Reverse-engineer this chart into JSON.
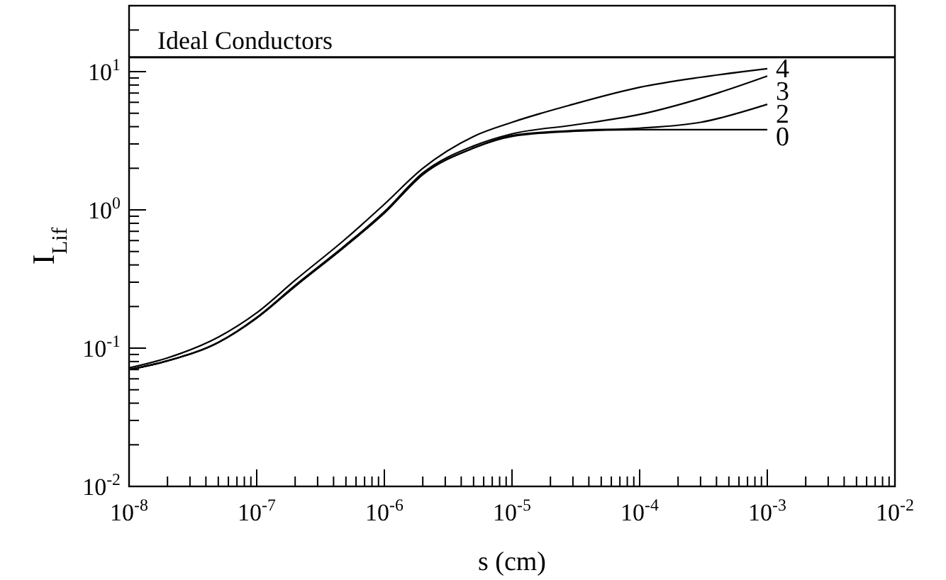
{
  "chart_data": {
    "type": "line",
    "xlabel": "s (cm)",
    "ylabel": "I$_{Lif}$",
    "log": "xy",
    "xlim": [
      1e-08,
      0.01
    ],
    "ylim": [
      0.01,
      30
    ],
    "xticks": [
      {
        "value": 1e-08,
        "label": "10$^{-8}$"
      },
      {
        "value": 2e-08,
        "label": null
      },
      {
        "value": 3e-08,
        "label": null
      },
      {
        "value": 4e-08,
        "label": null
      },
      {
        "value": 5e-08,
        "label": null
      },
      {
        "value": 6e-08,
        "label": null
      },
      {
        "value": 7e-08,
        "label": null
      },
      {
        "value": 8e-08,
        "label": null
      },
      {
        "value": 9e-08,
        "label": null
      },
      {
        "value": 1e-07,
        "label": "10$^{-7}$"
      },
      {
        "value": 2e-07,
        "label": null
      },
      {
        "value": 3e-07,
        "label": null
      },
      {
        "value": 4e-07,
        "label": null
      },
      {
        "value": 5e-07,
        "label": null
      },
      {
        "value": 6e-07,
        "label": null
      },
      {
        "value": 7e-07,
        "label": null
      },
      {
        "value": 8e-07,
        "label": null
      },
      {
        "value": 9e-07,
        "label": null
      },
      {
        "value": 1e-06,
        "label": "10$^{-6}$"
      },
      {
        "value": 2e-06,
        "label": null
      },
      {
        "value": 3e-06,
        "label": null
      },
      {
        "value": 4e-06,
        "label": null
      },
      {
        "value": 5e-06,
        "label": null
      },
      {
        "value": 6e-06,
        "label": null
      },
      {
        "value": 7e-06,
        "label": null
      },
      {
        "value": 8e-06,
        "label": null
      },
      {
        "value": 9e-06,
        "label": null
      },
      {
        "value": 1e-05,
        "label": "10$^{-5}$"
      },
      {
        "value": 2e-05,
        "label": null
      },
      {
        "value": 3e-05,
        "label": null
      },
      {
        "value": 4e-05,
        "label": null
      },
      {
        "value": 5e-05,
        "label": null
      },
      {
        "value": 6e-05,
        "label": null
      },
      {
        "value": 7e-05,
        "label": null
      },
      {
        "value": 8e-05,
        "label": null
      },
      {
        "value": 9e-05,
        "label": null
      },
      {
        "value": 0.0001,
        "label": "10$^{-4}$"
      },
      {
        "value": 0.0002,
        "label": null
      },
      {
        "value": 0.0003,
        "label": null
      },
      {
        "value": 0.0004,
        "label": null
      },
      {
        "value": 0.0005,
        "label": null
      },
      {
        "value": 0.0006,
        "label": null
      },
      {
        "value": 0.0007,
        "label": null
      },
      {
        "value": 0.0008,
        "label": null
      },
      {
        "value": 0.0009,
        "label": null
      },
      {
        "value": 0.001,
        "label": "10$^{-3}$"
      },
      {
        "value": 0.002,
        "label": null
      },
      {
        "value": 0.003,
        "label": null
      },
      {
        "value": 0.004,
        "label": null
      },
      {
        "value": 0.005,
        "label": null
      },
      {
        "value": 0.006,
        "label": null
      },
      {
        "value": 0.007,
        "label": null
      },
      {
        "value": 0.008,
        "label": null
      },
      {
        "value": 0.009,
        "label": null
      },
      {
        "value": 0.01,
        "label": "10$^{-2}$"
      }
    ],
    "yticks": [
      {
        "value": 0.01,
        "label": "10$^{-2}$"
      },
      {
        "value": 0.02,
        "label": null
      },
      {
        "value": 0.03,
        "label": null
      },
      {
        "value": 0.04,
        "label": null
      },
      {
        "value": 0.05,
        "label": null
      },
      {
        "value": 0.06,
        "label": null
      },
      {
        "value": 0.07,
        "label": null
      },
      {
        "value": 0.08,
        "label": null
      },
      {
        "value": 0.09,
        "label": null
      },
      {
        "value": 0.1,
        "label": "10$^{-1}$"
      },
      {
        "value": 0.2,
        "label": null
      },
      {
        "value": 0.3,
        "label": null
      },
      {
        "value": 0.4,
        "label": null
      },
      {
        "value": 0.5,
        "label": null
      },
      {
        "value": 0.6,
        "label": null
      },
      {
        "value": 0.7,
        "label": null
      },
      {
        "value": 0.8,
        "label": null
      },
      {
        "value": 0.9,
        "label": null
      },
      {
        "value": 1,
        "label": "10$^{0}$"
      },
      {
        "value": 2,
        "label": null
      },
      {
        "value": 3,
        "label": null
      },
      {
        "value": 4,
        "label": null
      },
      {
        "value": 5,
        "label": null
      },
      {
        "value": 6,
        "label": null
      },
      {
        "value": 7,
        "label": null
      },
      {
        "value": 8,
        "label": null
      },
      {
        "value": 9,
        "label": null
      },
      {
        "value": 10,
        "label": "10$^{1}$"
      },
      {
        "value": 20,
        "label": null
      },
      {
        "value": 30,
        "label": null
      }
    ],
    "grid": false,
    "marker": "none",
    "line_style": "solid",
    "ref_lines": [
      {
        "axis": "y",
        "value": 12.7,
        "label": "Ideal Conductors",
        "color": "#000000"
      }
    ],
    "series": [
      {
        "name": "0",
        "color": "#000000",
        "x": [
          1e-08,
          2e-08,
          5e-08,
          1e-07,
          2e-07,
          5e-07,
          1e-06,
          2e-06,
          5e-06,
          1e-05,
          3e-05,
          0.0001,
          0.0003,
          0.001
        ],
        "values": [
          0.07,
          0.081,
          0.11,
          0.165,
          0.28,
          0.55,
          0.95,
          1.8,
          2.8,
          3.4,
          3.7,
          3.8,
          3.8,
          3.8
        ]
      },
      {
        "name": "2",
        "color": "#000000",
        "x": [
          1e-08,
          2e-08,
          5e-08,
          1e-07,
          2e-07,
          5e-07,
          1e-06,
          2e-06,
          5e-06,
          1e-05,
          3e-05,
          0.0001,
          0.0003,
          0.001
        ],
        "values": [
          0.07,
          0.081,
          0.11,
          0.165,
          0.28,
          0.55,
          0.95,
          1.8,
          2.8,
          3.45,
          3.75,
          3.9,
          4.3,
          5.8
        ]
      },
      {
        "name": "3",
        "color": "#000000",
        "x": [
          1e-08,
          2e-08,
          5e-08,
          1e-07,
          2e-07,
          5e-07,
          1e-06,
          2e-06,
          5e-06,
          1e-05,
          3e-05,
          0.0001,
          0.0003,
          0.001
        ],
        "values": [
          0.07,
          0.081,
          0.11,
          0.167,
          0.285,
          0.56,
          0.97,
          1.85,
          2.9,
          3.55,
          4.1,
          4.9,
          6.4,
          9.3
        ]
      },
      {
        "name": "4",
        "color": "#000000",
        "x": [
          1e-08,
          2e-08,
          5e-08,
          1e-07,
          2e-07,
          5e-07,
          1e-06,
          2e-06,
          5e-06,
          1e-05,
          3e-05,
          0.0001,
          0.0003,
          0.001
        ],
        "values": [
          0.072,
          0.085,
          0.12,
          0.18,
          0.31,
          0.62,
          1.1,
          2.0,
          3.4,
          4.3,
          5.8,
          7.7,
          9.1,
          10.5
        ]
      }
    ]
  }
}
